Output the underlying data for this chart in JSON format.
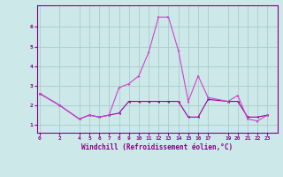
{
  "xlabel": "Windchill (Refroidissement éolien,°C)",
  "bg_color": "#cce8e8",
  "grid_color": "#aacccc",
  "line1_color": "#990099",
  "line2_color": "#cc44cc",
  "line1_x": [
    0,
    2,
    4,
    5,
    6,
    7,
    8,
    9,
    10,
    11,
    12,
    13,
    14,
    15,
    16,
    17,
    19,
    20,
    21,
    22,
    23
  ],
  "line1_y": [
    2.6,
    2.0,
    1.3,
    1.5,
    1.4,
    1.5,
    1.6,
    2.2,
    2.2,
    2.2,
    2.2,
    2.2,
    2.2,
    1.4,
    1.4,
    2.3,
    2.2,
    2.2,
    1.4,
    1.4,
    1.5
  ],
  "line2_x": [
    0,
    2,
    4,
    5,
    6,
    7,
    8,
    9,
    10,
    11,
    12,
    13,
    14,
    15,
    16,
    17,
    19,
    20,
    21,
    22,
    23
  ],
  "line2_y": [
    2.6,
    2.0,
    1.3,
    1.5,
    1.4,
    1.5,
    2.9,
    3.1,
    3.5,
    4.7,
    6.5,
    6.5,
    4.8,
    2.2,
    3.5,
    2.4,
    2.2,
    2.5,
    1.3,
    1.2,
    1.5
  ],
  "xticks": [
    0,
    2,
    4,
    5,
    6,
    7,
    8,
    9,
    10,
    11,
    12,
    13,
    14,
    15,
    16,
    17,
    19,
    20,
    21,
    22,
    23
  ],
  "yticks": [
    1,
    2,
    3,
    4,
    5,
    6
  ],
  "ylim": [
    0.6,
    7.1
  ],
  "xlim": [
    -0.3,
    24.0
  ]
}
